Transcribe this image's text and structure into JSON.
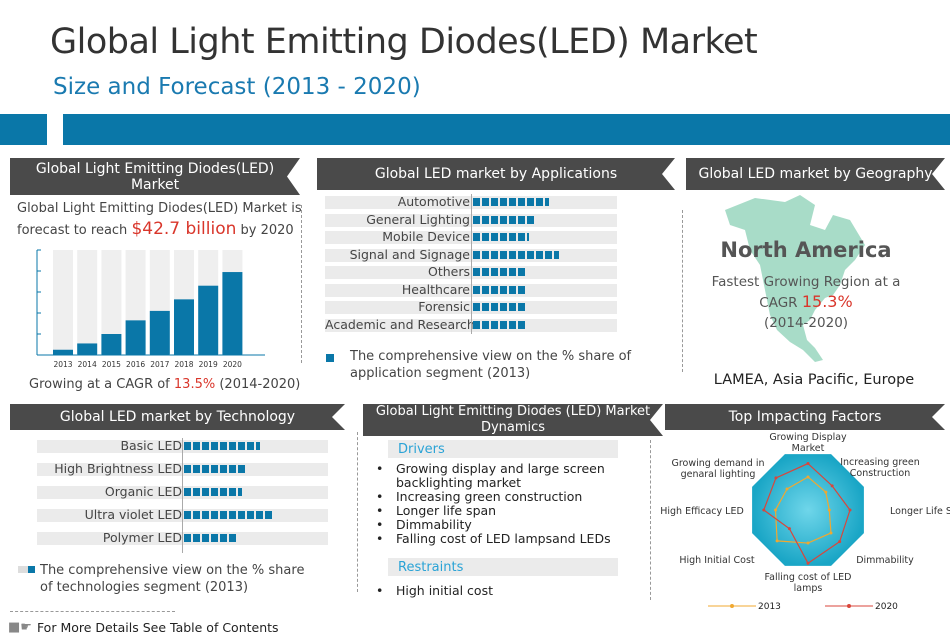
{
  "header": {
    "title": "Global Light Emitting Diodes(LED) Market",
    "subtitle": "Size and Forecast (2013 - 2020)",
    "accent_color": "#0a77a8"
  },
  "market": {
    "heading": "Global Light Emitting Diodes(LED) Market",
    "forecast_pre": "Global Light Emitting Diodes(LED) Market is forecast to reach",
    "forecast_value": "$42.7 billion",
    "forecast_post": "by 2020",
    "cagr_pre": "Growing at a CAGR of",
    "cagr_value": "13.5%",
    "cagr_post": "(2014-2020)"
  },
  "chart_data": [
    {
      "type": "bar",
      "categories": [
        "2013",
        "2014",
        "2015",
        "2016",
        "2017",
        "2018",
        "2019",
        "2020"
      ],
      "values": [
        2.5,
        5.5,
        10,
        16.5,
        21,
        26.5,
        33,
        39.5
      ],
      "ylim": [
        0,
        50
      ],
      "xlabel": "",
      "ylabel": "",
      "color": "#0a77a8"
    },
    {
      "type": "bar",
      "orientation": "horizontal",
      "title": "Global LED market by Applications",
      "categories": [
        "Automotive",
        "General Lighting",
        "Mobile Device",
        "Signal and Signage",
        "Others",
        "Healthcare",
        "Forensic",
        "Academic and Research"
      ],
      "values": [
        0.53,
        0.44,
        0.39,
        0.6,
        0.375,
        0.375,
        0.375,
        0.375
      ],
      "legend": "The comprehensive view on the % share of application segment (2013)"
    },
    {
      "type": "bar",
      "orientation": "horizontal",
      "title": "Global LED market by Technology",
      "categories": [
        "Basic LED",
        "High Brightness LED",
        "Organic LED",
        "Ultra violet LED",
        "Polymer LED"
      ],
      "values": [
        0.53,
        0.44,
        0.4,
        0.61,
        0.375
      ],
      "legend": "The comprehensive view on the % share of technologies segment (2013)"
    },
    {
      "type": "radar",
      "title": "Top Impacting Factors",
      "axes": [
        "Growing Display Market",
        "Increasing green Construction",
        "Longer Life Span",
        "Dimmability",
        "Falling cost of LED lamps",
        "High Initial Cost",
        "High Efficacy LED",
        "Growing demand in genaral lighting"
      ],
      "series": [
        {
          "name": "2013",
          "color": "#f0a830",
          "values": [
            0.59,
            0.45,
            0.38,
            0.58,
            0.59,
            0.78,
            0.58,
            0.53
          ]
        },
        {
          "name": "2020",
          "color": "#d9463b",
          "values": [
            0.83,
            0.61,
            0.75,
            0.8,
            0.95,
            0.47,
            0.79,
            0.81
          ]
        }
      ]
    }
  ],
  "geography": {
    "heading": "Global LED market by Geography",
    "region": "North America",
    "desc": "Fastest Growing Region at a",
    "cagr_label": "CAGR",
    "cagr_value": "15.3%",
    "period": "(2014-2020)",
    "others": "LAMEA, Asia Pacific, Europe",
    "map_color": "#a8dcc8"
  },
  "dynamics": {
    "heading": "Global Light Emitting Diodes (LED) Market Dynamics",
    "drivers_label": "Drivers",
    "drivers": [
      "Growing display and large screen backlighting market",
      "Increasing green construction",
      "Longer life span",
      "Dimmability",
      "Falling cost of LED lampsand LEDs"
    ],
    "restraints_label": "Restraints",
    "restraints": [
      "High initial cost"
    ]
  },
  "footer": {
    "link": "For More Details See Table of Contents",
    "icon": "pointing-hand-icon"
  }
}
